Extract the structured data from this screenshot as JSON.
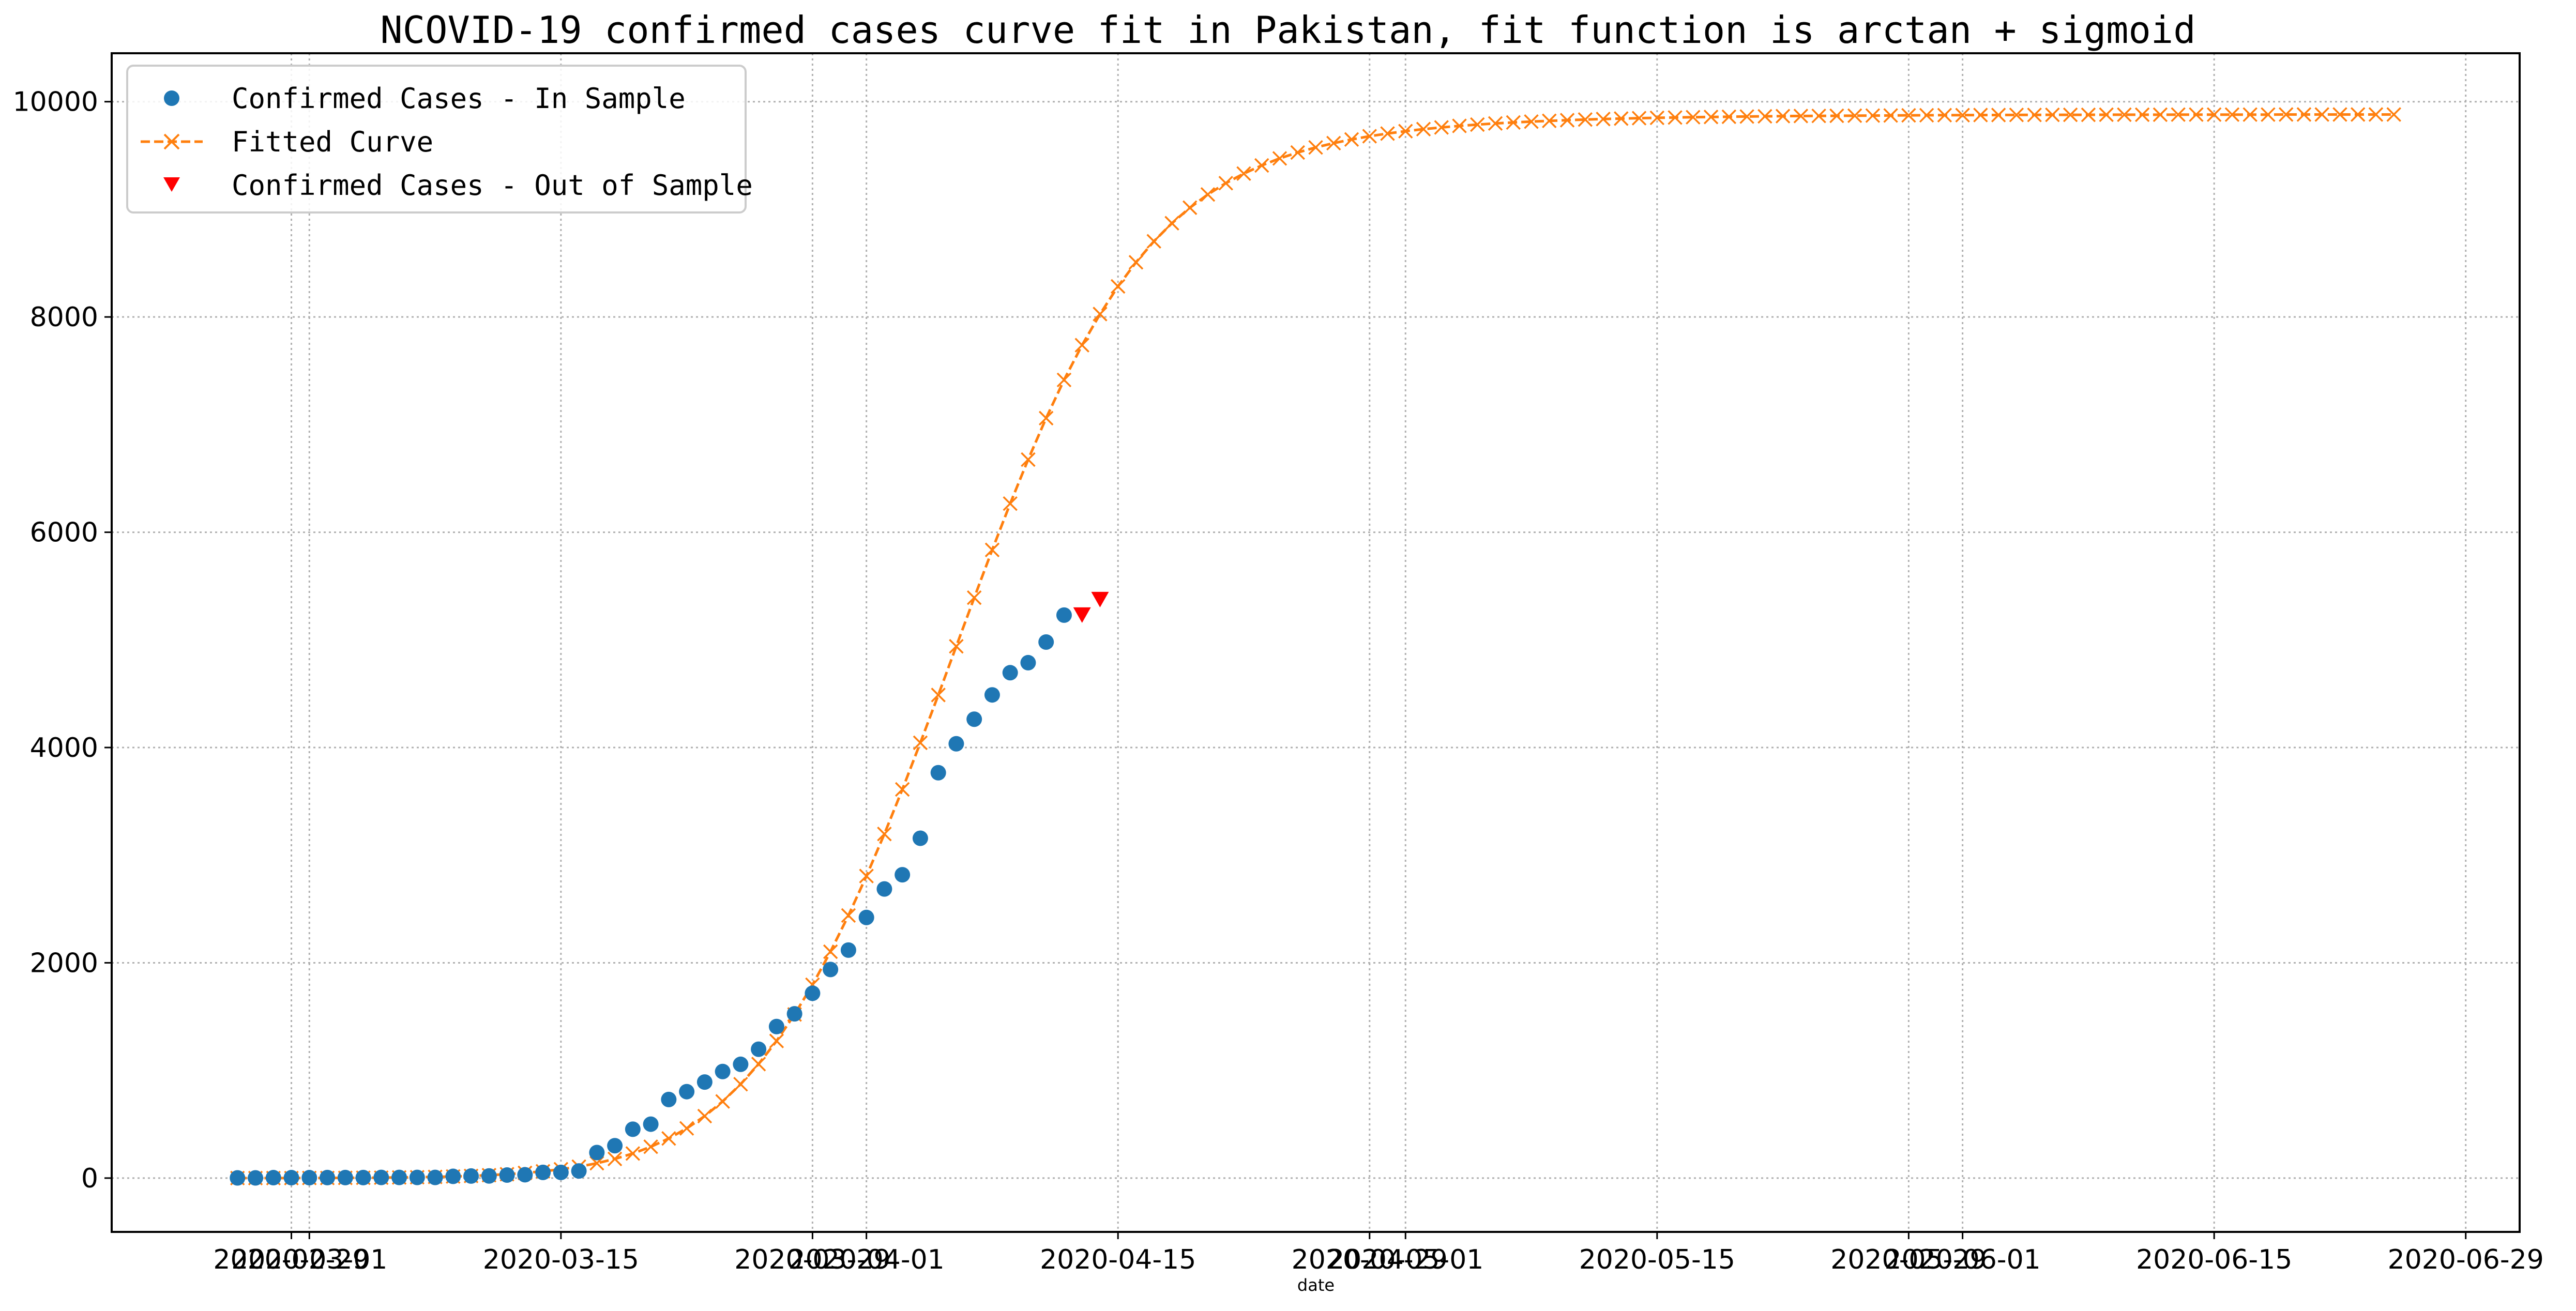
{
  "chart_data": {
    "type": "line",
    "title": "NCOVID-19 confirmed cases curve fit in Pakistan, fit function is arctan + sigmoid",
    "xlabel": "date",
    "ylabel": "",
    "xlim": [
      "2020-02-19",
      "2020-07-02"
    ],
    "ylim": [
      -500,
      10450
    ],
    "x_ticks": [
      "2020-02-29",
      "2020-03-01",
      "2020-03-15",
      "2020-03-29",
      "2020-04-01",
      "2020-04-15",
      "2020-04-29",
      "2020-05-01",
      "2020-05-15",
      "2020-05-29",
      "2020-06-01",
      "2020-06-15",
      "2020-06-29"
    ],
    "y_ticks": [
      0,
      2000,
      4000,
      6000,
      8000,
      10000
    ],
    "grid": true,
    "legend_position": "top-left",
    "series": [
      {
        "name": "Confirmed Cases - In Sample",
        "style": "dots",
        "color": "#1f77b4",
        "x": [
          "2020-02-26",
          "2020-02-27",
          "2020-02-28",
          "2020-02-29",
          "2020-03-01",
          "2020-03-02",
          "2020-03-03",
          "2020-03-04",
          "2020-03-05",
          "2020-03-06",
          "2020-03-07",
          "2020-03-08",
          "2020-03-09",
          "2020-03-10",
          "2020-03-11",
          "2020-03-12",
          "2020-03-13",
          "2020-03-14",
          "2020-03-15",
          "2020-03-16",
          "2020-03-17",
          "2020-03-18",
          "2020-03-19",
          "2020-03-20",
          "2020-03-21",
          "2020-03-22",
          "2020-03-23",
          "2020-03-24",
          "2020-03-25",
          "2020-03-26",
          "2020-03-27",
          "2020-03-28",
          "2020-03-29",
          "2020-03-30",
          "2020-03-31",
          "2020-04-01",
          "2020-04-02",
          "2020-04-03",
          "2020-04-04",
          "2020-04-05",
          "2020-04-06",
          "2020-04-07",
          "2020-04-08",
          "2020-04-09",
          "2020-04-10",
          "2020-04-11",
          "2020-04-12"
        ],
        "values": [
          2,
          2,
          4,
          4,
          4,
          5,
          5,
          5,
          6,
          6,
          6,
          6,
          16,
          19,
          20,
          28,
          31,
          53,
          53,
          66,
          237,
          301,
          454,
          501,
          730,
          803,
          892,
          990,
          1057,
          1197,
          1408,
          1526,
          1717,
          1938,
          2118,
          2421,
          2686,
          2818,
          3157,
          3766,
          4035,
          4263,
          4489,
          4695,
          4788,
          4980,
          5230
        ]
      },
      {
        "name": "Fitted Curve",
        "style": "dashed-x",
        "color": "#ff7f0e",
        "x_start": "2020-02-26",
        "x_end": "2020-06-26",
        "x_step_days": 1,
        "values": [
          0,
          0,
          0,
          0,
          1,
          1,
          2,
          3,
          4,
          6,
          8,
          11,
          15,
          20,
          27,
          36,
          48,
          63,
          82,
          106,
          138,
          178,
          228,
          291,
          368,
          462,
          576,
          712,
          872,
          1059,
          1274,
          1520,
          1796,
          2103,
          2440,
          2806,
          3197,
          3611,
          4044,
          4488,
          4940,
          5392,
          5836,
          6266,
          6675,
          7060,
          7415,
          7738,
          8027,
          8284,
          8508,
          8703,
          8871,
          9015,
          9138,
          9243,
          9332,
          9408,
          9473,
          9528,
          9575,
          9615,
          9649,
          9679,
          9704,
          9726,
          9745,
          9761,
          9775,
          9787,
          9798,
          9807,
          9815,
          9822,
          9828,
          9834,
          9839,
          9843,
          9847,
          9850,
          9853,
          9856,
          9858,
          9860,
          9862,
          9864,
          9866,
          9867,
          9868,
          9869,
          9870,
          9871,
          9872,
          9873,
          9874,
          9875,
          9875,
          9876,
          9876,
          9877,
          9877,
          9878,
          9878,
          9878,
          9879,
          9879,
          9879,
          9879,
          9880,
          9880,
          9880,
          9880,
          9880,
          9880,
          9881,
          9881,
          9881,
          9881,
          9881,
          9881,
          9881
        ]
      },
      {
        "name": "Confirmed Cases - Out of Sample",
        "style": "triangles",
        "color": "#ff0000",
        "x": [
          "2020-04-13",
          "2020-04-14"
        ],
        "values": [
          5230,
          5374
        ]
      }
    ]
  }
}
